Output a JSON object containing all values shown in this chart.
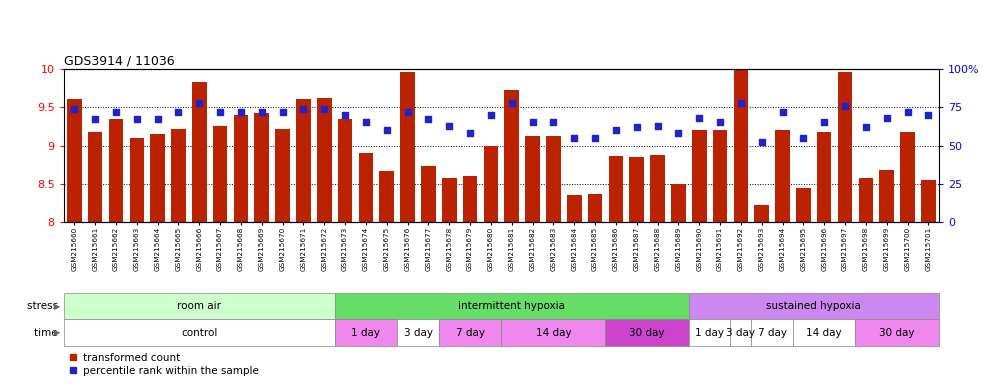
{
  "title": "GDS3914 / 11036",
  "samples": [
    "GSM215660",
    "GSM215661",
    "GSM215662",
    "GSM215663",
    "GSM215664",
    "GSM215665",
    "GSM215666",
    "GSM215667",
    "GSM215668",
    "GSM215669",
    "GSM215670",
    "GSM215671",
    "GSM215672",
    "GSM215673",
    "GSM215674",
    "GSM215675",
    "GSM215676",
    "GSM215677",
    "GSM215678",
    "GSM215679",
    "GSM215680",
    "GSM215681",
    "GSM215682",
    "GSM215683",
    "GSM215684",
    "GSM215685",
    "GSM215686",
    "GSM215687",
    "GSM215688",
    "GSM215689",
    "GSM215690",
    "GSM215691",
    "GSM215692",
    "GSM215693",
    "GSM215694",
    "GSM215695",
    "GSM215696",
    "GSM215697",
    "GSM215698",
    "GSM215699",
    "GSM215700",
    "GSM215701"
  ],
  "bar_values": [
    9.6,
    9.17,
    9.35,
    9.1,
    9.15,
    9.22,
    9.83,
    9.25,
    9.4,
    9.43,
    9.22,
    9.6,
    9.62,
    9.35,
    8.9,
    8.67,
    9.96,
    8.73,
    8.58,
    8.6,
    9.0,
    9.72,
    9.12,
    9.12,
    8.35,
    8.37,
    8.87,
    8.85,
    8.88,
    8.5,
    9.2,
    9.2,
    9.98,
    8.23,
    9.2,
    8.45,
    9.18,
    9.96,
    8.58,
    8.68,
    9.17,
    8.55
  ],
  "dot_values": [
    74,
    67,
    72,
    67,
    67,
    72,
    78,
    72,
    72,
    72,
    72,
    74,
    74,
    70,
    65,
    60,
    72,
    67,
    63,
    58,
    70,
    78,
    65,
    65,
    55,
    55,
    60,
    62,
    63,
    58,
    68,
    65,
    78,
    52,
    72,
    55,
    65,
    76,
    62,
    68,
    72,
    70
  ],
  "ylim_left": [
    8.0,
    10.0
  ],
  "ylim_right": [
    0,
    100
  ],
  "yticks_left": [
    8.0,
    8.5,
    9.0,
    9.5,
    10.0
  ],
  "yticks_right": [
    0,
    25,
    50,
    75,
    100
  ],
  "bar_color": "#BB2200",
  "dot_color": "#2222CC",
  "stress_groups": [
    {
      "label": "room air",
      "start": 0,
      "end": 13,
      "color": "#CCFFCC"
    },
    {
      "label": "intermittent hypoxia",
      "start": 13,
      "end": 30,
      "color": "#66DD66"
    },
    {
      "label": "sustained hypoxia",
      "start": 30,
      "end": 42,
      "color": "#CC88EE"
    }
  ],
  "time_groups": [
    {
      "label": "control",
      "start": 0,
      "end": 13,
      "color": "#FFFFFF"
    },
    {
      "label": "1 day",
      "start": 13,
      "end": 16,
      "color": "#EE88EE"
    },
    {
      "label": "3 day",
      "start": 16,
      "end": 18,
      "color": "#FFFFFF"
    },
    {
      "label": "7 day",
      "start": 18,
      "end": 21,
      "color": "#EE88EE"
    },
    {
      "label": "14 day",
      "start": 21,
      "end": 26,
      "color": "#EE88EE"
    },
    {
      "label": "30 day",
      "start": 26,
      "end": 30,
      "color": "#CC44CC"
    },
    {
      "label": "1 day",
      "start": 30,
      "end": 32,
      "color": "#FFFFFF"
    },
    {
      "label": "3 day",
      "start": 32,
      "end": 33,
      "color": "#FFFFFF"
    },
    {
      "label": "7 day",
      "start": 33,
      "end": 35,
      "color": "#FFFFFF"
    },
    {
      "label": "14 day",
      "start": 35,
      "end": 38,
      "color": "#FFFFFF"
    },
    {
      "label": "30 day",
      "start": 38,
      "end": 42,
      "color": "#EE88EE"
    }
  ],
  "legend_red_label": "transformed count",
  "legend_blue_label": "percentile rank within the sample",
  "fig_width": 9.83,
  "fig_height": 3.84,
  "dpi": 100
}
